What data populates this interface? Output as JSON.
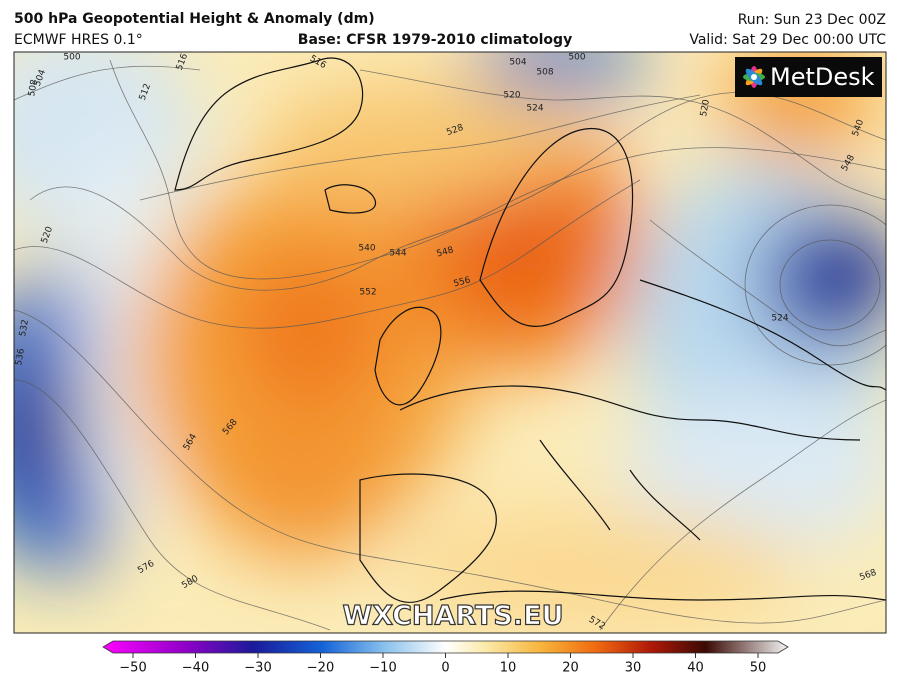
{
  "header": {
    "title": "500 hPa Geopotential Height & Anomaly (dm)",
    "model": "ECMWF HRES 0.1°",
    "base": "Base: CFSR 1979-2010 climatology",
    "run": "Run: Sun 23 Dec 00Z",
    "valid": "Valid: Sat 29 Dec 00:00 UTC"
  },
  "logo": "MetDesk",
  "watermark": "WXCHARTS.EU",
  "contour_labels": [
    "504",
    "500",
    "508",
    "512",
    "516",
    "516",
    "504",
    "508",
    "500",
    "520",
    "524",
    "528",
    "520",
    "540",
    "548",
    "520",
    "532",
    "536",
    "540",
    "544",
    "548",
    "552",
    "556",
    "524",
    "564",
    "568",
    "576",
    "580",
    "572",
    "568"
  ],
  "colorbar": {
    "lim": [
      -50,
      50
    ],
    "ticks": [
      {
        "value": -50,
        "label": "−50"
      },
      {
        "value": -40,
        "label": "−40"
      },
      {
        "value": -30,
        "label": "−30"
      },
      {
        "value": -20,
        "label": "−20"
      },
      {
        "value": -10,
        "label": "−10"
      },
      0,
      10,
      20,
      30,
      40,
      50
    ]
  }
}
